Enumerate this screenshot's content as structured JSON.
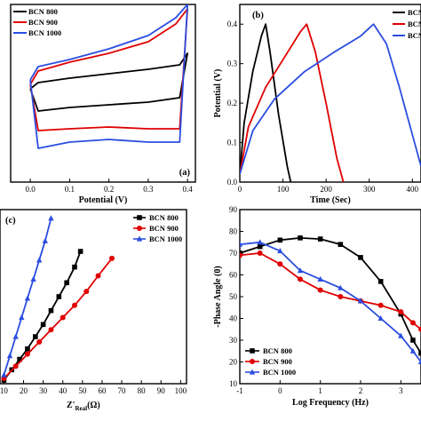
{
  "colors": {
    "black": "#000000",
    "red": "#e00000",
    "blue": "#2b4de0"
  },
  "chart_data": [
    {
      "panel": "(a)",
      "type": "line",
      "xlabel": "Potential (V)",
      "ylabel": "",
      "xlim": [
        -0.05,
        0.42
      ],
      "ylim": [
        -1.0,
        1.0
      ],
      "x_ticks": [
        "0.0",
        "0.1",
        "0.2",
        "0.3",
        "0.4"
      ],
      "x_tick_values": [
        0.0,
        0.1,
        0.2,
        0.3,
        0.4
      ],
      "legend": "top-left",
      "series": [
        {
          "name": "BCN 800",
          "color": "#000000",
          "x": [
            0.0,
            0.02,
            0.1,
            0.2,
            0.3,
            0.38,
            0.4,
            0.38,
            0.3,
            0.2,
            0.1,
            0.02,
            0.0
          ],
          "y": [
            0.05,
            0.12,
            0.17,
            0.22,
            0.27,
            0.32,
            0.45,
            -0.05,
            -0.1,
            -0.13,
            -0.16,
            -0.2,
            0.05
          ]
        },
        {
          "name": "BCN 900",
          "color": "#e00000",
          "x": [
            0.0,
            0.02,
            0.1,
            0.2,
            0.3,
            0.37,
            0.4,
            0.38,
            0.3,
            0.2,
            0.1,
            0.02,
            0.0
          ],
          "y": [
            0.1,
            0.25,
            0.35,
            0.45,
            0.58,
            0.78,
            0.95,
            -0.4,
            -0.4,
            -0.38,
            -0.4,
            -0.42,
            0.1
          ]
        },
        {
          "name": "BCN 1000",
          "color": "#2b4de0",
          "x": [
            0.0,
            0.02,
            0.1,
            0.2,
            0.3,
            0.37,
            0.4,
            0.38,
            0.3,
            0.2,
            0.1,
            0.02,
            0.0
          ],
          "y": [
            0.15,
            0.3,
            0.38,
            0.5,
            0.65,
            0.85,
            1.0,
            -0.55,
            -0.55,
            -0.52,
            -0.55,
            -0.62,
            0.15
          ]
        }
      ]
    },
    {
      "panel": "(b)",
      "type": "line",
      "xlabel": "Time (Sec)",
      "ylabel": "Potential (V)",
      "xlim": [
        0,
        420
      ],
      "ylim": [
        0.0,
        0.45
      ],
      "x_ticks": [
        "0",
        "100",
        "200",
        "300",
        "400"
      ],
      "x_tick_values": [
        0,
        100,
        200,
        300,
        400
      ],
      "y_ticks": [
        "0.0",
        "0.1",
        "0.2",
        "0.3",
        "0.4"
      ],
      "y_tick_values": [
        0.0,
        0.1,
        0.2,
        0.3,
        0.4
      ],
      "legend": "top-right",
      "series": [
        {
          "name": "BCN",
          "color": "#000000",
          "x": [
            0,
            10,
            30,
            50,
            60,
            70,
            90,
            110,
            118
          ],
          "y": [
            0.02,
            0.15,
            0.28,
            0.37,
            0.4,
            0.33,
            0.17,
            0.04,
            0.0
          ]
        },
        {
          "name": "BCN",
          "color": "#e00000",
          "x": [
            0,
            20,
            60,
            100,
            140,
            155,
            175,
            200,
            225,
            240
          ],
          "y": [
            0.02,
            0.14,
            0.24,
            0.31,
            0.38,
            0.4,
            0.33,
            0.2,
            0.06,
            0.0
          ]
        },
        {
          "name": "BCN",
          "color": "#2b4de0",
          "x": [
            0,
            30,
            80,
            150,
            220,
            280,
            310,
            340,
            370,
            400,
            420
          ],
          "y": [
            0.02,
            0.13,
            0.21,
            0.28,
            0.33,
            0.37,
            0.4,
            0.35,
            0.24,
            0.12,
            0.04
          ]
        }
      ]
    },
    {
      "panel": "(c)",
      "type": "line",
      "xlabel_main": "Z'",
      "xlabel_sub": "Real",
      "xlabel_unit": "(Ω)",
      "xlim": [
        8,
        103
      ],
      "ylim": [
        0,
        100
      ],
      "x_ticks": [
        "10",
        "20",
        "30",
        "40",
        "50",
        "60",
        "70",
        "80",
        "90",
        "100"
      ],
      "x_tick_values": [
        10,
        20,
        30,
        40,
        50,
        60,
        70,
        80,
        90,
        100
      ],
      "legend": "top-right",
      "series": [
        {
          "name": "BCN 800",
          "color": "#000000",
          "marker": "square",
          "x": [
            10,
            14,
            18,
            22,
            26,
            30,
            34,
            38,
            42,
            46,
            49
          ],
          "y": [
            2,
            8,
            14,
            20,
            27,
            34,
            42,
            50,
            58,
            67,
            76
          ]
        },
        {
          "name": "BCN 900",
          "color": "#e00000",
          "marker": "circle",
          "x": [
            10,
            16,
            22,
            28,
            34,
            40,
            46,
            52,
            58,
            65
          ],
          "y": [
            3,
            10,
            17,
            24,
            31,
            38,
            45,
            53,
            62,
            72
          ]
        },
        {
          "name": "BCN 1000",
          "color": "#2b4de0",
          "marker": "triangle",
          "x": [
            10,
            13,
            16,
            19,
            22,
            25,
            28,
            31,
            34
          ],
          "y": [
            5,
            16,
            27,
            38,
            49,
            60,
            71,
            82,
            95
          ]
        }
      ]
    },
    {
      "panel": "",
      "type": "line",
      "xlabel": "Log Frequency (Hz)",
      "ylabel": "-Phase Angle (0)",
      "xlim": [
        -1,
        3.5
      ],
      "ylim": [
        10,
        90
      ],
      "x_ticks": [
        "-1",
        "0",
        "1",
        "2",
        "3"
      ],
      "x_tick_values": [
        -1,
        0,
        1,
        2,
        3
      ],
      "y_ticks": [
        "10",
        "20",
        "30",
        "40",
        "50",
        "60",
        "70",
        "80",
        "90"
      ],
      "y_tick_values": [
        10,
        20,
        30,
        40,
        50,
        60,
        70,
        80,
        90
      ],
      "legend": "bottom-left",
      "series": [
        {
          "name": "BCN 800",
          "color": "#000000",
          "marker": "square",
          "x": [
            -1,
            -0.5,
            0,
            0.5,
            1,
            1.5,
            2,
            2.5,
            3,
            3.3,
            3.5
          ],
          "y": [
            70,
            73,
            76,
            77,
            76.5,
            74,
            68,
            57,
            42,
            30,
            24
          ]
        },
        {
          "name": "BCN 900",
          "color": "#e00000",
          "marker": "circle",
          "x": [
            -1,
            -0.5,
            0,
            0.5,
            1,
            1.5,
            2,
            2.5,
            3,
            3.3,
            3.5
          ],
          "y": [
            69,
            70,
            65,
            58,
            53,
            50,
            48,
            46,
            43,
            38,
            35
          ]
        },
        {
          "name": "BCN 1000",
          "color": "#2b4de0",
          "marker": "triangle",
          "x": [
            -1,
            -0.5,
            0,
            0.5,
            1,
            1.5,
            2,
            2.5,
            3,
            3.3,
            3.5
          ],
          "y": [
            74,
            75,
            71,
            62,
            58,
            54,
            48,
            40,
            32,
            25,
            20
          ]
        }
      ]
    }
  ]
}
